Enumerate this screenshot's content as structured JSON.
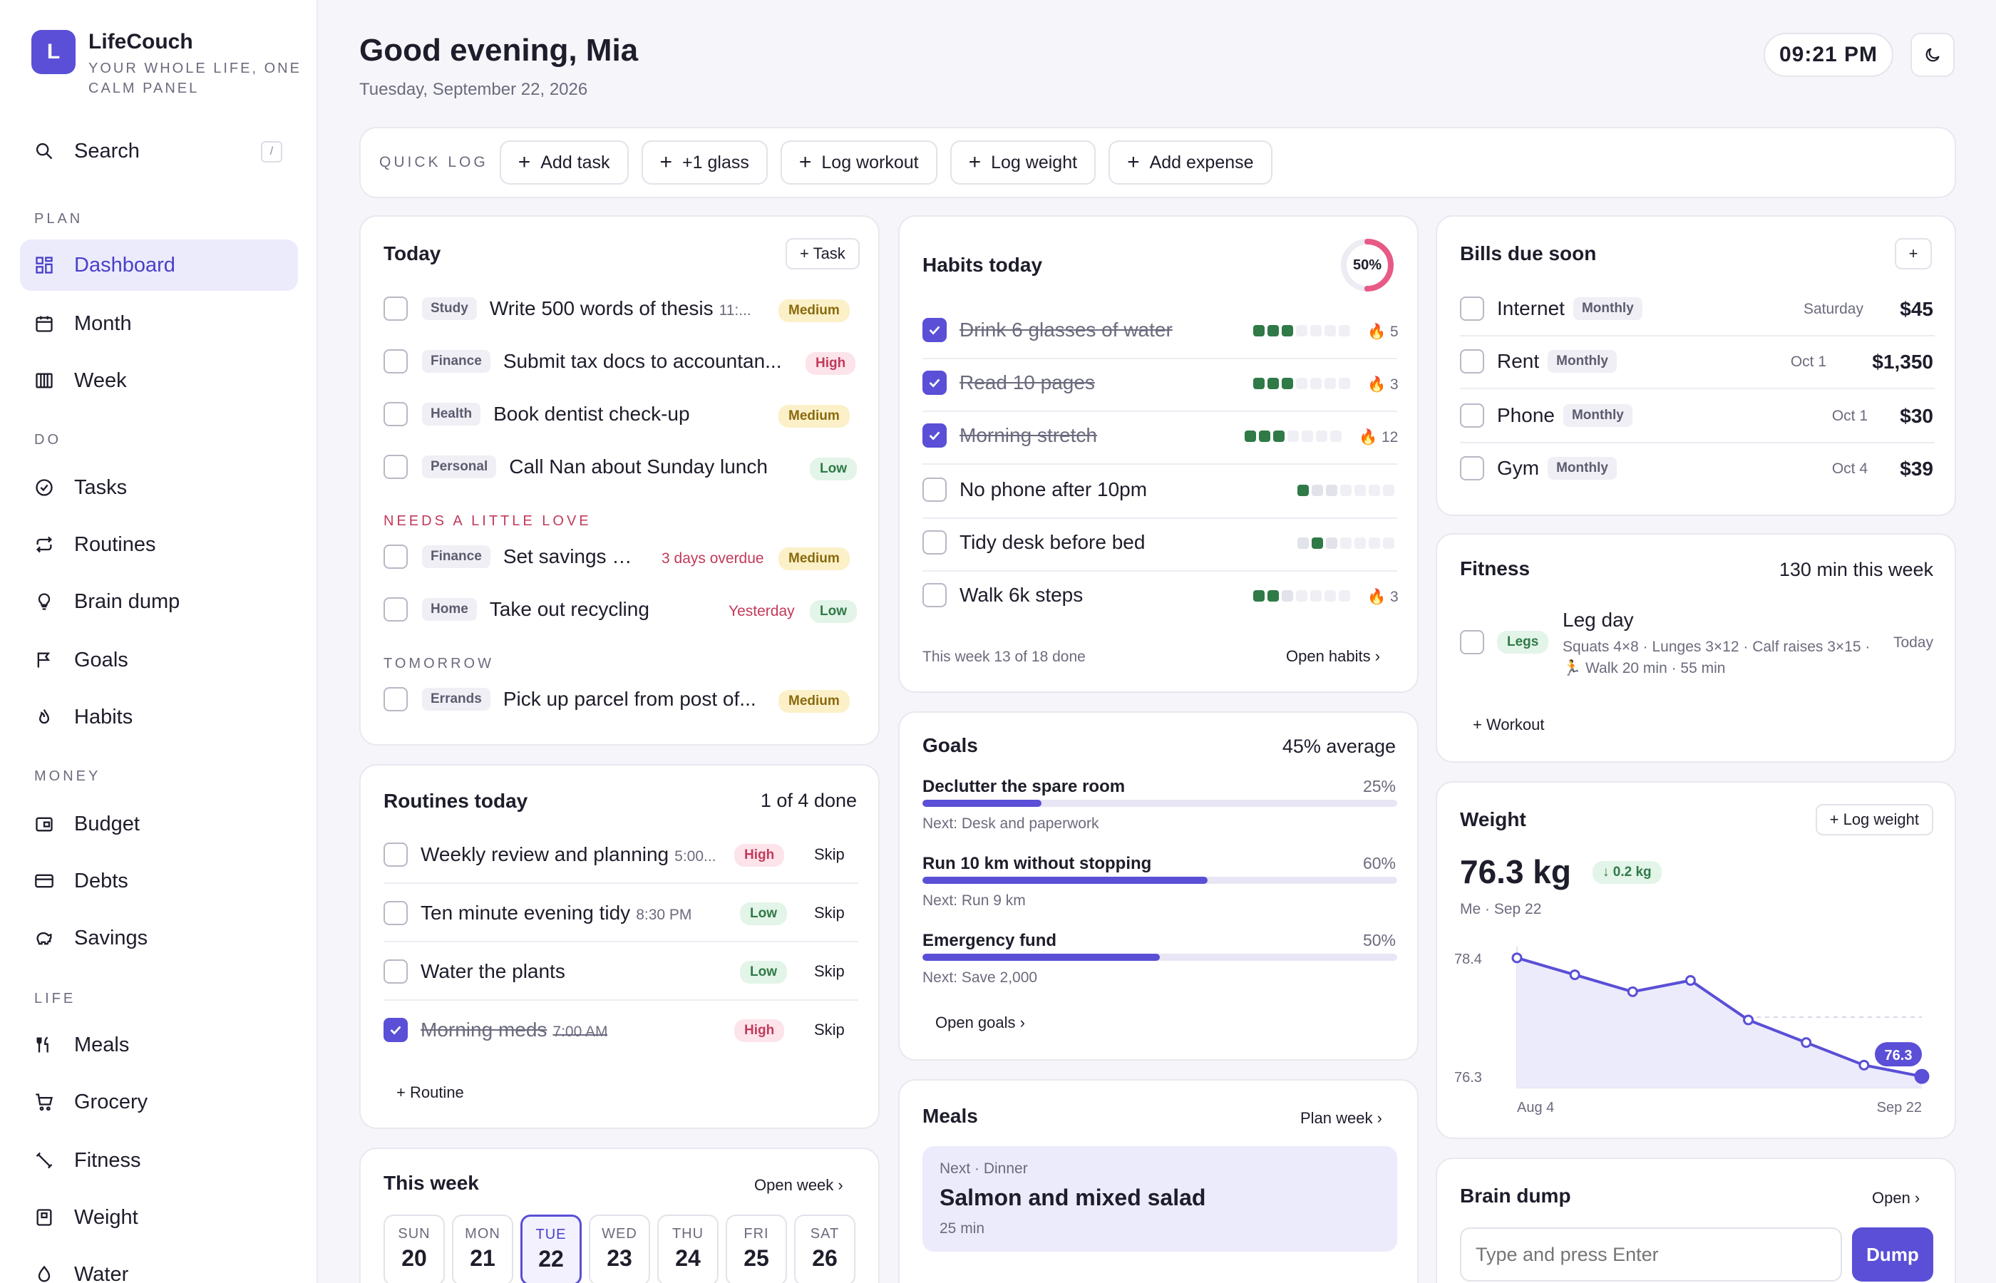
{
  "app": {
    "name": "LifeCouch",
    "tagline": "YOUR WHOLE LIFE, ONE CALM PANEL",
    "logo_letter": "L",
    "accent": "#5a4fd6"
  },
  "sidebar": {
    "search": {
      "label": "Search",
      "shortcut": "/"
    },
    "sections": [
      {
        "label": "PLAN",
        "items": [
          {
            "label": "Dashboard",
            "icon": "grid-icon",
            "active": true
          },
          {
            "label": "Month",
            "icon": "calendar-icon"
          },
          {
            "label": "Week",
            "icon": "columns-icon"
          }
        ]
      },
      {
        "label": "DO",
        "items": [
          {
            "label": "Tasks",
            "icon": "check-circle-icon"
          },
          {
            "label": "Routines",
            "icon": "repeat-icon"
          },
          {
            "label": "Brain dump",
            "icon": "lightbulb-icon"
          },
          {
            "label": "Goals",
            "icon": "flag-icon"
          },
          {
            "label": "Habits",
            "icon": "flame-icon"
          }
        ]
      },
      {
        "label": "MONEY",
        "items": [
          {
            "label": "Budget",
            "icon": "wallet-icon"
          },
          {
            "label": "Debts",
            "icon": "credit-card-icon"
          },
          {
            "label": "Savings",
            "icon": "piggy-bank-icon"
          }
        ]
      },
      {
        "label": "LIFE",
        "items": [
          {
            "label": "Meals",
            "icon": "utensils-icon"
          },
          {
            "label": "Grocery",
            "icon": "cart-icon"
          },
          {
            "label": "Fitness",
            "icon": "dumbbell-icon"
          },
          {
            "label": "Weight",
            "icon": "scale-icon"
          },
          {
            "label": "Water",
            "icon": "droplet-icon"
          }
        ]
      }
    ]
  },
  "header": {
    "greeting": "Good evening, Mia",
    "date": "Tuesday, September 22, 2026",
    "clock": "09:21 PM"
  },
  "quick_log": {
    "label": "QUICK LOG",
    "buttons": [
      "Add task",
      "+1 glass",
      "Log workout",
      "Log weight",
      "Add expense"
    ]
  },
  "today": {
    "title": "Today",
    "add_label": "+ Task",
    "tasks": [
      {
        "category": "Study",
        "text": "Write 500 words of thesis",
        "time": "11:...",
        "priority": "Medium"
      },
      {
        "category": "Finance",
        "text": "Submit tax docs to accountan...",
        "priority": "High"
      },
      {
        "category": "Health",
        "text": "Book dentist check-up",
        "priority": "Medium"
      },
      {
        "category": "Personal",
        "text": "Call Nan about Sunday lunch",
        "priority": "Low"
      }
    ],
    "needs_love_label": "NEEDS A LITTLE LOVE",
    "needs_love": [
      {
        "category": "Finance",
        "text": "Set savings g...",
        "overdue": "3 days overdue",
        "priority": "Medium"
      },
      {
        "category": "Home",
        "text": "Take out recycling",
        "overdue": "Yesterday",
        "priority": "Low"
      }
    ],
    "tomorrow_label": "TOMORROW",
    "tomorrow": [
      {
        "category": "Errands",
        "text": "Pick up parcel from post of...",
        "priority": "Medium"
      }
    ]
  },
  "routines": {
    "title": "Routines today",
    "summary": "1 of 4 done",
    "add_label": "+ Routine",
    "skip_label": "Skip",
    "items": [
      {
        "text": "Weekly review and planning",
        "time": "5:00...",
        "priority": "High",
        "done": false
      },
      {
        "text": "Ten minute evening tidy",
        "time": "8:30 PM",
        "priority": "Low",
        "done": false
      },
      {
        "text": "Water the plants",
        "time": "",
        "priority": "Low",
        "done": false
      },
      {
        "text": "Morning meds",
        "time": "7:00 AM",
        "priority": "High",
        "done": true
      }
    ]
  },
  "this_week": {
    "title": "This week",
    "link": "Open week ›",
    "days": [
      {
        "name": "SUN",
        "num": "20"
      },
      {
        "name": "MON",
        "num": "21"
      },
      {
        "name": "TUE",
        "num": "22",
        "today": true
      },
      {
        "name": "WED",
        "num": "23"
      },
      {
        "name": "THU",
        "num": "24"
      },
      {
        "name": "FRI",
        "num": "25"
      },
      {
        "name": "SAT",
        "num": "26"
      }
    ]
  },
  "habits": {
    "title": "Habits today",
    "progress_label": "50%",
    "progress": 0.5,
    "footer": "This week 13 of 18 done",
    "link": "Open habits ›",
    "items": [
      {
        "text": "Drink 6 glasses of water",
        "done": true,
        "week": [
          1,
          1,
          1,
          0,
          0,
          0,
          0
        ],
        "streak": "5"
      },
      {
        "text": "Read 10 pages",
        "done": true,
        "week": [
          1,
          1,
          1,
          0,
          0,
          0,
          0
        ],
        "streak": "3"
      },
      {
        "text": "Morning stretch",
        "done": true,
        "week": [
          1,
          1,
          1,
          0,
          0,
          0,
          0
        ],
        "streak": "12"
      },
      {
        "text": "No phone after 10pm",
        "done": false,
        "week": [
          1,
          2,
          2,
          0,
          0,
          0,
          0
        ],
        "streak": ""
      },
      {
        "text": "Tidy desk before bed",
        "done": false,
        "week": [
          2,
          1,
          2,
          0,
          0,
          0,
          0
        ],
        "streak": ""
      },
      {
        "text": "Walk 6k steps",
        "done": false,
        "week": [
          1,
          1,
          2,
          0,
          0,
          0,
          0
        ],
        "streak": "3"
      }
    ]
  },
  "goals": {
    "title": "Goals",
    "summary": "45% average",
    "link": "Open goals ›",
    "items": [
      {
        "name": "Declutter the spare room",
        "pct_label": "25%",
        "pct": 25,
        "next": "Next: Desk and paperwork"
      },
      {
        "name": "Run 10 km without stopping",
        "pct_label": "60%",
        "pct": 60,
        "next": "Next: Run 9 km"
      },
      {
        "name": "Emergency fund",
        "pct_label": "50%",
        "pct": 50,
        "next": "Next: Save 2,000"
      }
    ]
  },
  "meals": {
    "title": "Meals",
    "link": "Plan week ›",
    "next_label": "Next · Dinner",
    "next_meal": "Salmon and mixed salad",
    "duration": "25 min"
  },
  "bills": {
    "title": "Bills due soon",
    "add_label": "+",
    "items": [
      {
        "name": "Internet",
        "freq": "Monthly",
        "date": "Saturday",
        "amount": "$45"
      },
      {
        "name": "Rent",
        "freq": "Monthly",
        "date": "Oct 1",
        "amount": "$1,350"
      },
      {
        "name": "Phone",
        "freq": "Monthly",
        "date": "Oct 1",
        "amount": "$30"
      },
      {
        "name": "Gym",
        "freq": "Monthly",
        "date": "Oct 4",
        "amount": "$39"
      }
    ]
  },
  "fitness": {
    "title": "Fitness",
    "summary": "130 min this week",
    "add_label": "+ Workout",
    "workout": {
      "tag": "Legs",
      "name": "Leg day",
      "details": "Squats 4×8 · Lunges 3×12 · Calf raises 3×15 ·",
      "extra": "Walk 20 min · 55 min",
      "when": "Today"
    }
  },
  "weight": {
    "title": "Weight",
    "add_label": "+ Log weight",
    "current": "76.3 kg",
    "change": "↓ 0.2 kg",
    "meta": "Me · Sep 22",
    "chart_data": {
      "type": "line",
      "x": [
        "Aug 4",
        "",
        "",
        "",
        "",
        "",
        "",
        "Sep 22"
      ],
      "values": [
        78.4,
        78.1,
        77.8,
        78.0,
        77.3,
        76.9,
        76.5,
        76.3
      ],
      "y_ticks": [
        "78.4",
        "76.3"
      ],
      "x_ticks": [
        "Aug 4",
        "Sep 22"
      ],
      "ylim": [
        76.1,
        78.6
      ],
      "last_label": "76.3",
      "color": "#5a4fd6"
    }
  },
  "brain_dump": {
    "title": "Brain dump",
    "link": "Open ›",
    "placeholder": "Type and press Enter",
    "button": "Dump"
  }
}
